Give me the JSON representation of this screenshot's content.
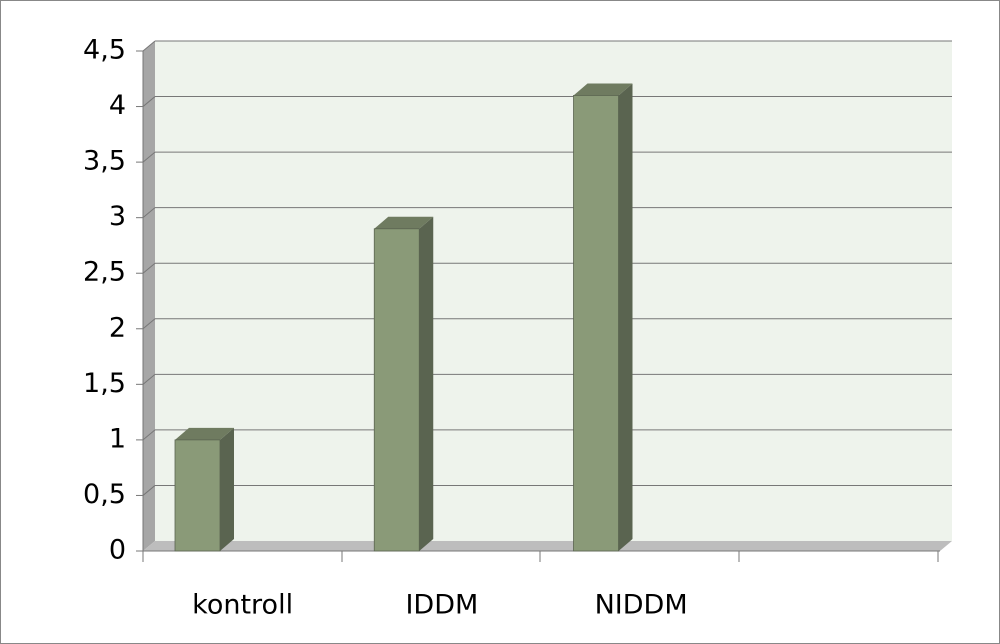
{
  "chart_data": {
    "type": "bar3d",
    "categories": [
      "kontroll",
      "IDDM",
      "NIDDM",
      null
    ],
    "values": [
      1,
      2.9,
      4.1,
      null
    ],
    "color": "#8a9a78",
    "ylim": [
      0,
      4.5
    ],
    "yticks": [
      0,
      {
        "value": 0.5,
        "label": "0,5"
      },
      1,
      {
        "value": 1.5,
        "label": "1,5"
      },
      2,
      {
        "value": 2.5,
        "label": "2,5"
      },
      3,
      {
        "value": 3.5,
        "label": "3,5"
      },
      4,
      {
        "value": 4.5,
        "label": "4,5"
      }
    ],
    "grid": true
  }
}
